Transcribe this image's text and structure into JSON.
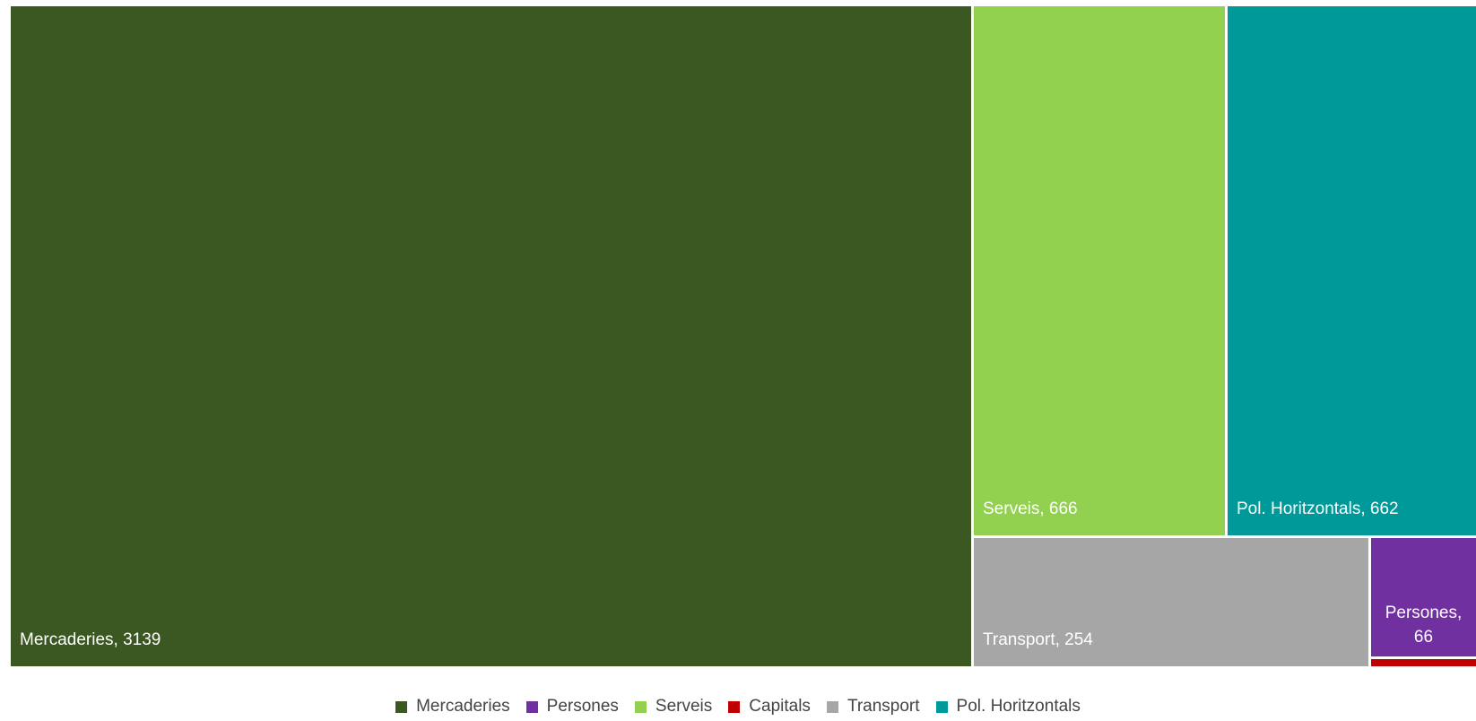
{
  "chart_data": {
    "type": "treemap",
    "series": [
      {
        "name": "Mercaderies",
        "value": 3139,
        "color": "#3b5823",
        "label": "Mercaderies, 3139"
      },
      {
        "name": "Serveis",
        "value": 666,
        "color": "#92d050",
        "label": "Serveis, 666"
      },
      {
        "name": "Pol. Horitzontals",
        "value": 662,
        "color": "#009999",
        "label": "Pol. Horitzontals, 662"
      },
      {
        "name": "Transport",
        "value": 254,
        "color": "#a6a6a6",
        "label": "Transport, 254"
      },
      {
        "name": "Persones",
        "value": 66,
        "color": "#7030a0",
        "label": "Persones, 66",
        "label_lines": [
          "Persones,",
          "66"
        ]
      },
      {
        "name": "Capitals",
        "value": 5,
        "color": "#c00000",
        "label": ""
      }
    ],
    "legend": {
      "placement": "bottom",
      "entries": [
        {
          "name": "Mercaderies",
          "color": "#3b5823"
        },
        {
          "name": "Persones",
          "color": "#7030a0"
        },
        {
          "name": "Serveis",
          "color": "#92d050"
        },
        {
          "name": "Capitals",
          "color": "#c00000"
        },
        {
          "name": "Transport",
          "color": "#a6a6a6"
        },
        {
          "name": "Pol. Horitzontals",
          "color": "#009999"
        }
      ]
    }
  }
}
